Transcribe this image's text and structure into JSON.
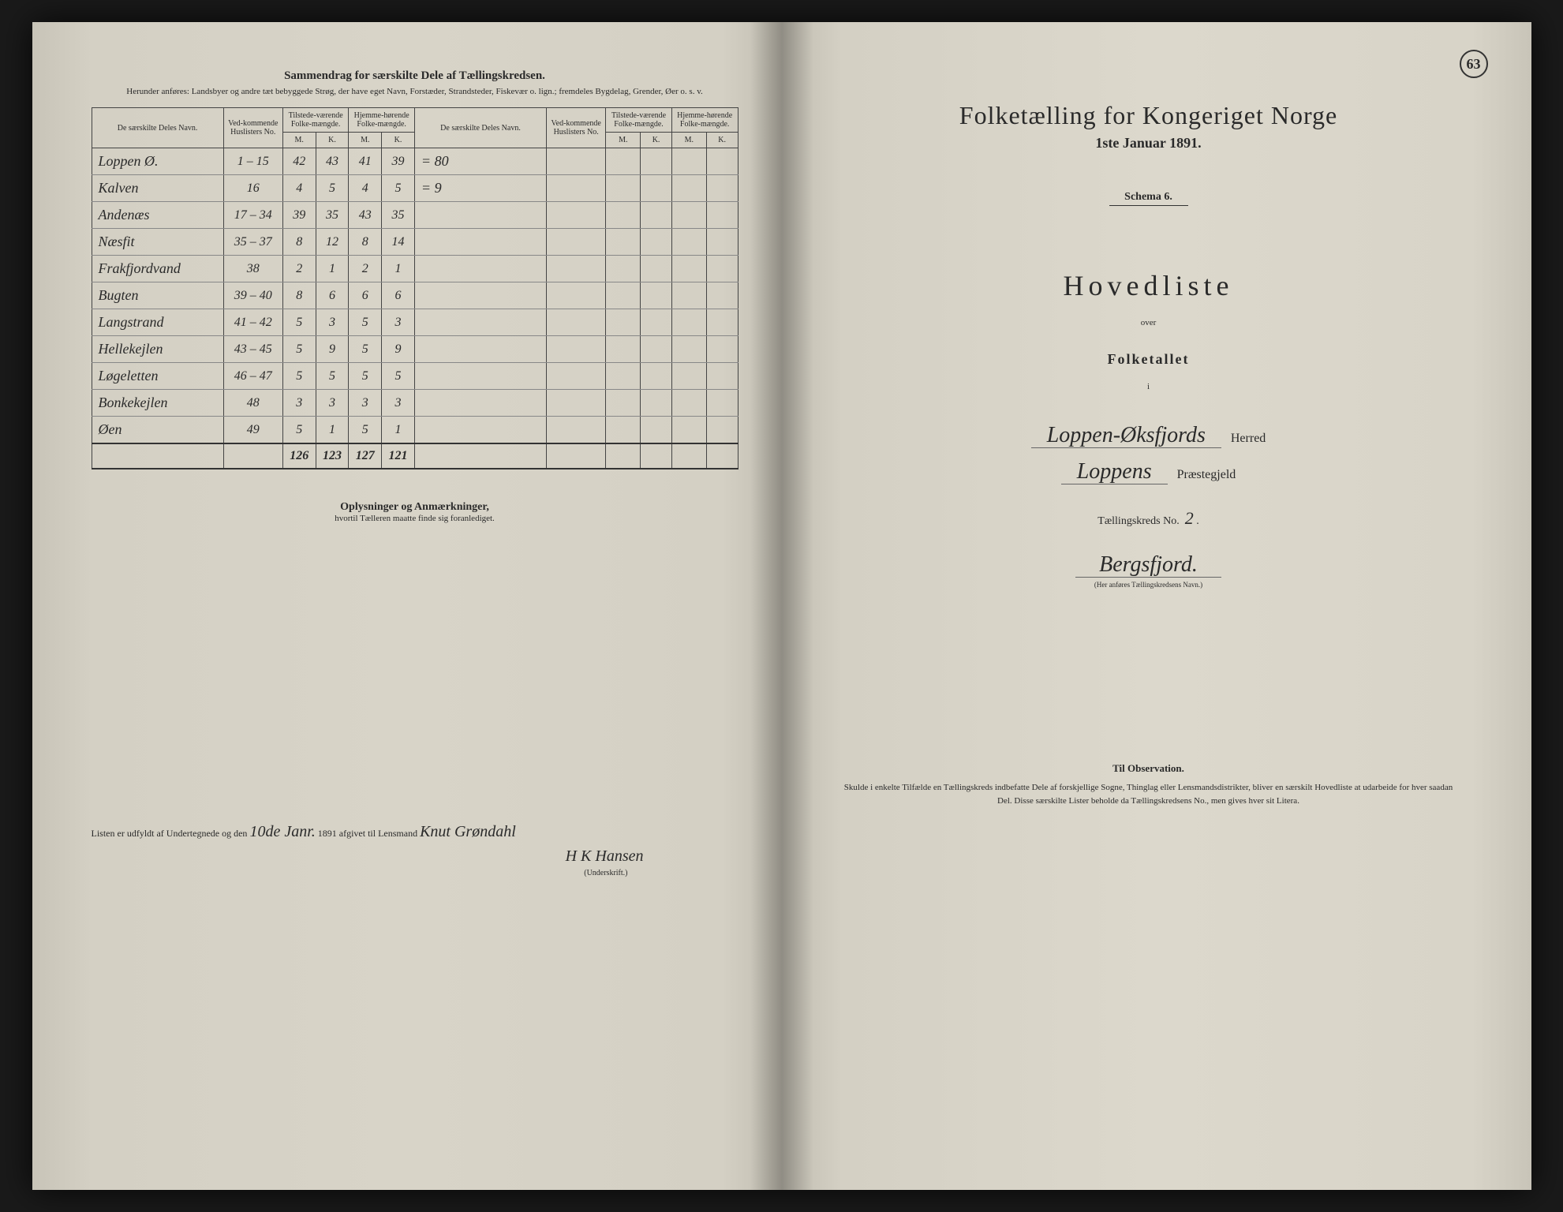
{
  "left": {
    "title": "Sammendrag for særskilte Dele af Tællingskredsen.",
    "subtitle": "Herunder anføres: Landsbyer og andre tæt bebyggede Strøg, der have eget Navn, Forstæder, Strandsteder, Fiskevær o. lign.; fremdeles Bygdelag, Grender, Øer o. s. v.",
    "headers": {
      "navn": "De særskilte Deles Navn.",
      "huslister": "Ved-kommende Huslisters No.",
      "tilstede": "Tilstede-værende Folke-mængde.",
      "hjemme": "Hjemme-hørende Folke-mængde.",
      "m": "M.",
      "k": "K."
    },
    "rows": [
      {
        "name": "Loppen Ø.",
        "hus": "1 – 15",
        "tm": "42",
        "tk": "43",
        "hm": "41",
        "hk": "39",
        "note": "= 80"
      },
      {
        "name": "Kalven",
        "hus": "16",
        "tm": "4",
        "tk": "5",
        "hm": "4",
        "hk": "5",
        "note": "= 9"
      },
      {
        "name": "Andenæs",
        "hus": "17 – 34",
        "tm": "39",
        "tk": "35",
        "hm": "43",
        "hk": "35",
        "note": ""
      },
      {
        "name": "Næsfit",
        "hus": "35 – 37",
        "tm": "8",
        "tk": "12",
        "hm": "8",
        "hk": "14",
        "note": ""
      },
      {
        "name": "Frakfjordvand",
        "hus": "38",
        "tm": "2",
        "tk": "1",
        "hm": "2",
        "hk": "1",
        "note": ""
      },
      {
        "name": "Bugten",
        "hus": "39 – 40",
        "tm": "8",
        "tk": "6",
        "hm": "6",
        "hk": "6",
        "note": ""
      },
      {
        "name": "Langstrand",
        "hus": "41 – 42",
        "tm": "5",
        "tk": "3",
        "hm": "5",
        "hk": "3",
        "note": ""
      },
      {
        "name": "Hellekejlen",
        "hus": "43 – 45",
        "tm": "5",
        "tk": "9",
        "hm": "5",
        "hk": "9",
        "note": ""
      },
      {
        "name": "Løgeletten",
        "hus": "46 – 47",
        "tm": "5",
        "tk": "5",
        "hm": "5",
        "hk": "5",
        "note": ""
      },
      {
        "name": "Bonkekejlen",
        "hus": "48",
        "tm": "3",
        "tk": "3",
        "hm": "3",
        "hk": "3",
        "note": ""
      },
      {
        "name": "Øen",
        "hus": "49",
        "tm": "5",
        "tk": "1",
        "hm": "5",
        "hk": "1",
        "note": ""
      }
    ],
    "totals": {
      "tm": "126",
      "tk": "123",
      "hm": "127",
      "hk": "121"
    },
    "notes_title": "Oplysninger og Anmærkninger,",
    "notes_sub": "hvortil Tælleren maatte finde sig foranlediget.",
    "sig_prefix": "Listen er udfyldt af Undertegnede og den",
    "sig_date": "10de Janr.",
    "sig_year": "1891 afgivet til Lensmand",
    "sig_name": "Knut Grøndahl",
    "sig_name2": "H K Hansen",
    "sig_under": "(Underskrift.)"
  },
  "right": {
    "page_num": "63",
    "main_title": "Folketælling for Kongeriget Norge",
    "date": "1ste Januar 1891.",
    "schema": "Schema 6.",
    "hovedliste": "Hovedliste",
    "over": "over",
    "folketallet": "Folketallet",
    "i": "i",
    "herred_name": "Loppen-Øksfjords",
    "herred_label": "Herred",
    "praeste_name": "Loppens",
    "praeste_label": "Præstegjeld",
    "tkreds_label": "Tællingskreds No.",
    "tkreds_num": "2",
    "kreds_name": "Bergsfjord.",
    "kreds_sub": "(Her anføres Tællingskredsens Navn.)",
    "obs_title": "Til Observation.",
    "obs_text": "Skulde i enkelte Tilfælde en Tællingskreds indbefatte Dele af forskjellige Sogne, Thinglag eller Lensmandsdistrikter, bliver en særskilt Hovedliste at udarbeide for hver saadan Del. Disse særskilte Lister beholde da Tællingskredsens No., men gives hver sit Litera."
  }
}
